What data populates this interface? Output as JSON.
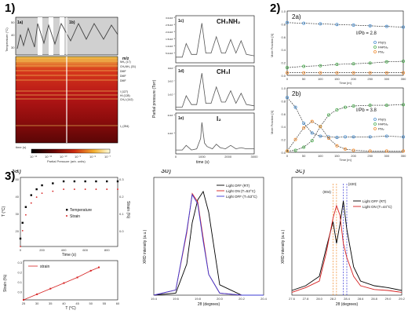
{
  "panel_labels": {
    "p1": "1)",
    "p2": "2)",
    "p3": "3)"
  },
  "panel1": {
    "heat_top": {
      "label_a": "1a)",
      "label_b": "1b)",
      "ylabel": "Temperature (°C)",
      "yticks": [
        "50",
        "40",
        "30"
      ]
    },
    "heatmap": {
      "mz_title": "m/z",
      "species": [
        "NH₃ (17)",
        "CH₃NH₂ (31)",
        "DMF",
        "DMF",
        "DMF",
        "I (127)",
        "HI (128)",
        "CH₃I (142)",
        "I₂ (254)"
      ],
      "xlabel": "time (s)",
      "colorbar_ticks": [
        "10⁻¹²",
        "10⁻¹¹",
        "10⁻¹⁰",
        "10⁻⁹",
        "10⁻⁸",
        "10⁻⁷"
      ],
      "colorbar_label": "Partial Pressure (arb. units)"
    },
    "traces": {
      "ylabel": "Partial pressure (Torr)",
      "xlabel": "time (s)",
      "xticks": [
        "0",
        "1000",
        "2000",
        "3000"
      ],
      "panels": [
        {
          "id": "1c)",
          "species": "CH₃NH₂",
          "yticks": [
            "3.0x10⁻⁸",
            "2.5x10⁻⁸",
            "2.0x10⁻⁸",
            "1.5x10⁻⁸",
            "1.0x10⁻⁸",
            "5.0x10⁻⁹"
          ]
        },
        {
          "id": "1d)",
          "species": "CH₃I",
          "yticks": [
            "3x10⁻⁷",
            "2x10⁻⁷",
            "1x10⁻⁷"
          ]
        },
        {
          "id": "1e)",
          "species": "I₂",
          "yticks": [
            "2x10⁻⁹",
            "1x10⁻⁹"
          ]
        }
      ]
    }
  },
  "panel2": {
    "ylabel": "Mole Fraction [X]",
    "xlabel": "Time [m]",
    "xticks": [
      "0",
      "50",
      "100",
      "150",
      "200",
      "250",
      "300",
      "350"
    ],
    "a": {
      "label": "2a)",
      "ratio": "I/Pb = 2.8",
      "yticks": [
        "1.0",
        "0.8",
        "0.6",
        "0.4",
        "0.2",
        "0.0"
      ],
      "legend": [
        "Pb(0)",
        "FAPbI₃",
        "PbI₂"
      ]
    },
    "b": {
      "label": "2b)",
      "ratio": "I/Pb = 3.8",
      "yticks": [
        "1.0",
        "0.8",
        "0.6",
        "0.4",
        "0.2",
        "0.0"
      ],
      "legend": [
        "Pb(0)",
        "FAPbI₃",
        "PbI₂"
      ]
    }
  },
  "panel3": {
    "a": {
      "label": "3a)",
      "top_ylabel": "T (°C)",
      "top_ylabel_right": "Strain (%)",
      "top_xlabel": "Time (s)",
      "top_xticks": [
        "0",
        "200",
        "400",
        "600",
        "800"
      ],
      "top_yticks": [
        "50",
        "40",
        "30",
        "20"
      ],
      "top_yticks_right": [
        "0.3",
        "0.2",
        "0.1",
        "0.0"
      ],
      "legend": [
        "Temperature",
        "Strain"
      ],
      "bottom_ylabel": "Strain (%)",
      "bottom_xlabel": "T (°C)",
      "bottom_legend": "strain",
      "bottom_xticks": [
        "25",
        "30",
        "35",
        "40",
        "45",
        "50",
        "55",
        "60"
      ],
      "bottom_yticks": [
        "0.3",
        "0.2",
        "0.1",
        "0.0"
      ]
    },
    "b": {
      "label": "3b)",
      "ylabel": "XRD intensity (a.u.)",
      "xlabel": "2θ (degrees)",
      "xticks": [
        "19.4",
        "19.6",
        "19.8",
        "20.0",
        "20.2",
        "20.4"
      ],
      "legend": [
        "Light OFF (RT)",
        "Light ON (T=53°C)",
        "Light OFF (T=53°C)"
      ],
      "colors": [
        "#000000",
        "#d62020",
        "#3b3bd6"
      ]
    },
    "c": {
      "label": "3c)",
      "ylabel": "XRD intensity (a.u.)",
      "xlabel": "2θ (degrees)",
      "xticks": [
        "27.6",
        "27.8",
        "28.0",
        "28.2",
        "28.4",
        "28.6",
        "28.8",
        "29.0",
        "29.2"
      ],
      "legend": [
        "Light OFF (RT)",
        "Light ON (T=44°C)"
      ],
      "peak_labels": [
        "(004)",
        "(220)"
      ]
    }
  },
  "chart_data": [
    {
      "type": "line",
      "panel": "1c)",
      "xlabel": "time (s)",
      "ylabel": "Partial pressure (Torr)",
      "x": [
        0,
        250,
        400,
        600,
        800,
        1000,
        1150,
        1350,
        1550,
        1750,
        1900,
        2100,
        2300,
        2500,
        2700,
        3000
      ],
      "series": [
        {
          "name": "CH₃NH₂",
          "values": [
            0.3,
            0.3,
            1.3,
            0.5,
            0.5,
            2.8,
            0.6,
            0.6,
            1.8,
            0.6,
            0.6,
            1.6,
            0.6,
            1.5,
            0.5,
            0.4
          ]
        }
      ]
    },
    {
      "type": "line",
      "panel": "1d)",
      "xlabel": "time (s)",
      "x": [
        0,
        250,
        400,
        600,
        800,
        1000,
        1150,
        1350,
        1550,
        1750,
        1900,
        2100,
        2300,
        2500,
        2700,
        3000
      ],
      "series": [
        {
          "name": "CH₃I",
          "values": [
            0.1,
            0.1,
            1.0,
            0.3,
            0.3,
            2.8,
            0.4,
            0.4,
            1.7,
            0.5,
            0.5,
            1.4,
            0.4,
            1.2,
            0.3,
            0.2
          ]
        }
      ]
    },
    {
      "type": "line",
      "panel": "1e)",
      "xlabel": "time (s)",
      "x": [
        0,
        250,
        400,
        600,
        800,
        950,
        1000,
        1100,
        1200,
        1400,
        1550,
        1700,
        1900,
        2100,
        2300,
        2500,
        2700,
        3000
      ],
      "series": [
        {
          "name": "I₂",
          "values": [
            0.2,
            0.2,
            0.6,
            0.2,
            0.3,
            1.2,
            2.6,
            0.8,
            0.5,
            0.3,
            0.7,
            0.4,
            0.3,
            0.6,
            0.3,
            0.4,
            0.3,
            0.3
          ]
        }
      ]
    },
    {
      "type": "scatter",
      "panel": "2a)",
      "xlabel": "Time [m]",
      "ylabel": "Mole Fraction [X]",
      "ylim": [
        0,
        1
      ],
      "x": [
        0,
        50,
        100,
        150,
        200,
        250,
        300,
        350
      ],
      "series": [
        {
          "name": "Pb(0)",
          "values": [
            0.82,
            0.81,
            0.8,
            0.79,
            0.78,
            0.77,
            0.76,
            0.75
          ]
        },
        {
          "name": "FAPbI₃",
          "values": [
            0.12,
            0.14,
            0.15,
            0.17,
            0.18,
            0.19,
            0.21,
            0.22
          ]
        },
        {
          "name": "PbI₂",
          "values": [
            0.04,
            0.04,
            0.04,
            0.04,
            0.04,
            0.04,
            0.04,
            0.04
          ]
        }
      ]
    },
    {
      "type": "scatter",
      "panel": "2b)",
      "xlabel": "Time [m]",
      "ylabel": "Mole Fraction [X]",
      "ylim": [
        0,
        1
      ],
      "x": [
        0,
        25,
        50,
        75,
        100,
        125,
        150,
        175,
        200,
        250,
        300,
        350
      ],
      "series": [
        {
          "name": "Pb(0)",
          "values": [
            0.85,
            0.7,
            0.45,
            0.3,
            0.25,
            0.24,
            0.23,
            0.24,
            0.24,
            0.24,
            0.25,
            0.24
          ]
        },
        {
          "name": "FAPbI₃",
          "values": [
            0.02,
            0.03,
            0.08,
            0.18,
            0.4,
            0.58,
            0.66,
            0.7,
            0.72,
            0.73,
            0.73,
            0.74
          ]
        },
        {
          "name": "PbI₂",
          "values": [
            0.02,
            0.2,
            0.38,
            0.48,
            0.4,
            0.22,
            0.1,
            0.05,
            0.03,
            0.02,
            0.02,
            0.02
          ]
        }
      ]
    },
    {
      "type": "scatter",
      "panel": "3a)",
      "xlabel": "Time (s)",
      "ylabel": "T (°C)",
      "x": [
        0,
        20,
        50,
        100,
        150,
        200,
        300,
        400,
        500,
        600,
        700,
        800,
        900
      ],
      "series": [
        {
          "name": "Temperature",
          "values": [
            24,
            32,
            40,
            46,
            49,
            51,
            52,
            53,
            53,
            53,
            53,
            53,
            53
          ]
        },
        {
          "name": "Strain",
          "values": [
            0.0,
            0.08,
            0.16,
            0.22,
            0.25,
            0.27,
            0.28,
            0.29,
            0.29,
            0.29,
            0.29,
            0.29,
            0.29
          ]
        }
      ]
    },
    {
      "type": "line",
      "panel": "3a) lower",
      "xlabel": "T (°C)",
      "ylabel": "Strain (%)",
      "x": [
        25,
        30,
        35,
        40,
        45,
        50,
        53
      ],
      "series": [
        {
          "name": "strain",
          "values": [
            0.0,
            0.05,
            0.1,
            0.15,
            0.2,
            0.26,
            0.29
          ]
        }
      ]
    },
    {
      "type": "line",
      "panel": "3b)",
      "xlabel": "2θ (degrees)",
      "ylabel": "XRD intensity (a.u.)",
      "x": [
        19.4,
        19.6,
        19.7,
        19.75,
        19.8,
        19.85,
        19.9,
        20.0,
        20.2,
        20.4
      ],
      "series": [
        {
          "name": "Light OFF (RT)",
          "values": [
            0.0,
            0.02,
            0.3,
            0.7,
            0.92,
            1.0,
            0.8,
            0.1,
            0.0,
            0.0
          ]
        },
        {
          "name": "Light ON (T=53°C)",
          "values": [
            0.0,
            0.05,
            0.6,
            0.98,
            0.9,
            0.55,
            0.2,
            0.02,
            0.0,
            0.0
          ]
        },
        {
          "name": "Light OFF (T=53°C)",
          "values": [
            0.0,
            0.05,
            0.62,
            0.97,
            0.88,
            0.52,
            0.2,
            0.02,
            0.0,
            0.0
          ]
        }
      ]
    },
    {
      "type": "line",
      "panel": "3c)",
      "xlabel": "2θ (degrees)",
      "ylabel": "XRD intensity (a.u.)",
      "x": [
        27.6,
        27.8,
        28.0,
        28.1,
        28.2,
        28.25,
        28.3,
        28.35,
        28.4,
        28.5,
        28.6,
        28.8,
        29.0,
        29.2
      ],
      "series": [
        {
          "name": "Light OFF (RT)",
          "values": [
            0.05,
            0.1,
            0.2,
            0.5,
            0.78,
            0.55,
            0.75,
            1.0,
            0.7,
            0.3,
            0.15,
            0.1,
            0.08,
            0.05
          ]
        },
        {
          "name": "Light ON (T=44°C)",
          "values": [
            0.03,
            0.08,
            0.15,
            0.45,
            0.82,
            0.95,
            0.85,
            0.55,
            0.4,
            0.2,
            0.1,
            0.06,
            0.05,
            0.03
          ]
        }
      ]
    }
  ]
}
